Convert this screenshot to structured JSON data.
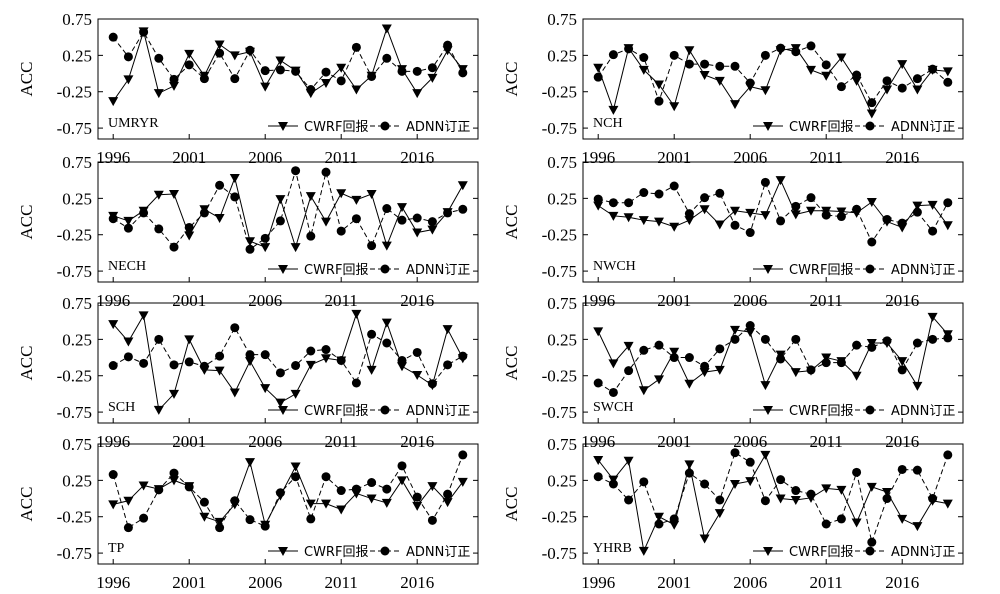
{
  "figure": {
    "ylabel": "ACC",
    "legend": {
      "series1": "CWRF回报",
      "series2": "ADNN订正",
      "placement": "bottom-right"
    },
    "colors": {
      "line": "#000000",
      "marker": "#000000",
      "background": "#ffffff"
    }
  },
  "chart_data": [
    {
      "type": "line",
      "region": "UMRYR",
      "xlim": [
        1995,
        2020
      ],
      "ylim": [
        -0.9,
        0.75
      ],
      "x": [
        1996,
        1997,
        1998,
        1999,
        2000,
        2001,
        2002,
        2003,
        2004,
        2005,
        2006,
        2007,
        2008,
        2009,
        2010,
        2011,
        2012,
        2013,
        2014,
        2015,
        2016,
        2017,
        2018,
        2019
      ],
      "xticks": [
        1996,
        2001,
        2006,
        2011,
        2016
      ],
      "yticks": [
        0.75,
        0.25,
        -0.25,
        -0.75
      ],
      "series": [
        {
          "name": "CWRF回报",
          "values": [
            -0.38,
            -0.08,
            0.58,
            -0.27,
            -0.17,
            0.27,
            -0.03,
            0.4,
            0.25,
            0.3,
            -0.18,
            0.18,
            0.04,
            -0.27,
            -0.13,
            0.08,
            -0.22,
            -0.03,
            0.62,
            0.06,
            -0.27,
            -0.06,
            0.32,
            0.06
          ]
        },
        {
          "name": "ADNN订正",
          "values": [
            0.5,
            0.23,
            0.57,
            0.21,
            -0.08,
            0.12,
            -0.07,
            0.28,
            -0.07,
            0.32,
            0.04,
            0.05,
            0.03,
            -0.22,
            0.02,
            -0.1,
            0.36,
            -0.04,
            0.21,
            0.03,
            0.03,
            0.08,
            0.39,
            0.01
          ]
        }
      ]
    },
    {
      "type": "line",
      "region": "NCH",
      "xlim": [
        1995,
        2020
      ],
      "ylim": [
        -0.9,
        0.75
      ],
      "x": [
        1996,
        1997,
        1998,
        1999,
        2000,
        2001,
        2002,
        2003,
        2004,
        2005,
        2006,
        2007,
        2008,
        2009,
        2010,
        2011,
        2012,
        2013,
        2014,
        2015,
        2016,
        2017,
        2018,
        2019
      ],
      "xticks": [
        1996,
        2001,
        2006,
        2011,
        2016
      ],
      "yticks": [
        0.75,
        0.25,
        -0.25,
        -0.75
      ],
      "series": [
        {
          "name": "CWRF回报",
          "values": [
            0.08,
            -0.5,
            0.35,
            0.05,
            -0.15,
            -0.45,
            0.32,
            -0.02,
            -0.1,
            -0.42,
            -0.18,
            -0.23,
            0.32,
            0.35,
            0.05,
            -0.03,
            0.22,
            -0.1,
            -0.55,
            -0.22,
            0.13,
            -0.22,
            0.05,
            0.03
          ]
        },
        {
          "name": "ADNN订正",
          "values": [
            -0.05,
            0.26,
            0.34,
            0.22,
            -0.38,
            0.25,
            0.13,
            0.13,
            0.1,
            0.1,
            -0.13,
            0.25,
            0.35,
            0.3,
            0.38,
            0.12,
            -0.18,
            -0.02,
            -0.4,
            -0.1,
            -0.2,
            -0.07,
            0.06,
            -0.12
          ]
        }
      ]
    },
    {
      "type": "line",
      "region": "NECH",
      "xlim": [
        1995,
        2020
      ],
      "ylim": [
        -0.9,
        0.75
      ],
      "x": [
        1996,
        1997,
        1998,
        1999,
        2000,
        2001,
        2002,
        2003,
        2004,
        2005,
        2006,
        2007,
        2008,
        2009,
        2010,
        2011,
        2012,
        2013,
        2014,
        2015,
        2016,
        2017,
        2018,
        2019
      ],
      "xticks": [
        1996,
        2001,
        2006,
        2011,
        2016
      ],
      "yticks": [
        0.75,
        0.25,
        -0.25,
        -0.75
      ],
      "series": [
        {
          "name": "CWRF回报",
          "values": [
            0.01,
            -0.06,
            0.08,
            0.3,
            0.31,
            -0.26,
            0.1,
            -0.02,
            0.53,
            -0.34,
            -0.42,
            0.24,
            -0.42,
            0.28,
            -0.07,
            0.32,
            0.23,
            0.31,
            -0.4,
            0.13,
            -0.22,
            -0.18,
            0.06,
            0.43
          ]
        },
        {
          "name": "ADNN订正",
          "values": [
            -0.03,
            -0.16,
            0.05,
            -0.17,
            -0.42,
            -0.15,
            0.05,
            0.43,
            0.27,
            -0.45,
            -0.3,
            -0.06,
            0.63,
            -0.27,
            0.61,
            -0.2,
            -0.03,
            -0.4,
            0.11,
            -0.05,
            -0.02,
            -0.07,
            0.05,
            0.1
          ]
        }
      ]
    },
    {
      "type": "line",
      "region": "NWCH",
      "xlim": [
        1995,
        2020
      ],
      "ylim": [
        -0.9,
        0.75
      ],
      "x": [
        1996,
        1997,
        1998,
        1999,
        2000,
        2001,
        2002,
        2003,
        2004,
        2005,
        2006,
        2007,
        2008,
        2009,
        2010,
        2011,
        2012,
        2013,
        2014,
        2015,
        2016,
        2017,
        2018,
        2019
      ],
      "xticks": [
        1996,
        2001,
        2006,
        2011,
        2016
      ],
      "yticks": [
        0.75,
        0.25,
        -0.25,
        -0.75
      ],
      "series": [
        {
          "name": "CWRF回报",
          "values": [
            0.15,
            0.01,
            -0.01,
            -0.05,
            -0.07,
            -0.14,
            -0.05,
            0.1,
            -0.11,
            0.08,
            0.05,
            0.02,
            0.5,
            0.03,
            0.08,
            0.08,
            0.07,
            0.05,
            0.2,
            -0.07,
            -0.15,
            0.15,
            0.16,
            -0.12
          ]
        },
        {
          "name": "ADNN订正",
          "values": [
            0.24,
            0.19,
            0.19,
            0.33,
            0.31,
            0.42,
            0.04,
            0.26,
            0.32,
            -0.12,
            -0.22,
            0.47,
            -0.06,
            0.14,
            0.26,
            0.02,
            0.0,
            0.1,
            -0.35,
            -0.04,
            -0.09,
            0.06,
            -0.2,
            0.19
          ]
        }
      ]
    },
    {
      "type": "line",
      "region": "SCH",
      "xlim": [
        1995,
        2020
      ],
      "ylim": [
        -0.9,
        0.75
      ],
      "x": [
        1996,
        1997,
        1998,
        1999,
        2000,
        2001,
        2002,
        2003,
        2004,
        2005,
        2006,
        2007,
        2008,
        2009,
        2010,
        2011,
        2012,
        2013,
        2014,
        2015,
        2016,
        2017,
        2018,
        2019
      ],
      "xticks": [
        1996,
        2001,
        2006,
        2011,
        2016
      ],
      "yticks": [
        0.75,
        0.25,
        -0.25,
        -0.75
      ],
      "series": [
        {
          "name": "CWRF回报",
          "values": [
            0.46,
            0.22,
            0.58,
            -0.72,
            -0.5,
            0.25,
            -0.17,
            -0.18,
            -0.48,
            -0.05,
            -0.42,
            -0.62,
            -0.5,
            -0.1,
            -0.01,
            -0.04,
            0.6,
            -0.17,
            0.48,
            -0.12,
            -0.24,
            -0.38,
            0.39,
            -0.01
          ]
        },
        {
          "name": "ADNN订正",
          "values": [
            -0.11,
            0.01,
            -0.08,
            0.25,
            -0.1,
            -0.06,
            -0.12,
            0.02,
            0.41,
            0.04,
            0.04,
            -0.21,
            -0.11,
            0.09,
            0.11,
            -0.04,
            -0.35,
            0.32,
            0.2,
            -0.04,
            0.07,
            -0.36,
            -0.1,
            0.02
          ]
        }
      ]
    },
    {
      "type": "line",
      "region": "SWCH",
      "xlim": [
        1995,
        2020
      ],
      "ylim": [
        -0.9,
        0.75
      ],
      "x": [
        1996,
        1997,
        1998,
        1999,
        2000,
        2001,
        2002,
        2003,
        2004,
        2005,
        2006,
        2007,
        2008,
        2009,
        2010,
        2011,
        2012,
        2013,
        2014,
        2015,
        2016,
        2017,
        2018,
        2019
      ],
      "xticks": [
        1996,
        2001,
        2006,
        2011,
        2016
      ],
      "yticks": [
        0.75,
        0.25,
        -0.25,
        -0.75
      ],
      "series": [
        {
          "name": "CWRF回报",
          "values": [
            0.36,
            -0.08,
            0.16,
            -0.45,
            -0.3,
            0.08,
            -0.36,
            -0.2,
            -0.17,
            0.38,
            0.35,
            -0.38,
            0.04,
            -0.2,
            -0.18,
            0.0,
            -0.05,
            -0.25,
            0.2,
            0.2,
            -0.05,
            -0.39,
            0.56,
            0.32
          ]
        },
        {
          "name": "ADNN订正",
          "values": [
            -0.35,
            -0.48,
            -0.18,
            0.1,
            0.17,
            0.0,
            0.0,
            -0.12,
            0.12,
            0.25,
            0.44,
            0.25,
            -0.02,
            0.25,
            -0.17,
            -0.07,
            -0.07,
            0.17,
            0.14,
            0.23,
            -0.17,
            0.2,
            0.25,
            0.27
          ]
        }
      ]
    },
    {
      "type": "line",
      "region": "TP",
      "xlim": [
        1995,
        2020
      ],
      "ylim": [
        -0.9,
        0.75
      ],
      "x": [
        1996,
        1997,
        1998,
        1999,
        2000,
        2001,
        2002,
        2003,
        2004,
        2005,
        2006,
        2007,
        2008,
        2009,
        2010,
        2011,
        2012,
        2013,
        2014,
        2015,
        2016,
        2017,
        2018,
        2019
      ],
      "xticks": [
        1996,
        2001,
        2006,
        2011,
        2016
      ],
      "yticks": [
        0.75,
        0.25,
        -0.25,
        -0.75
      ],
      "series": [
        {
          "name": "CWRF回报",
          "values": [
            -0.08,
            -0.03,
            0.18,
            0.13,
            0.25,
            0.17,
            -0.25,
            -0.32,
            -0.08,
            0.5,
            -0.36,
            0.04,
            0.44,
            -0.07,
            -0.07,
            -0.15,
            0.07,
            0.0,
            -0.06,
            0.25,
            -0.1,
            0.17,
            -0.05,
            0.23
          ]
        },
        {
          "name": "ADNN订正",
          "values": [
            0.33,
            -0.4,
            -0.27,
            0.12,
            0.35,
            0.16,
            -0.05,
            -0.4,
            -0.03,
            -0.29,
            -0.38,
            0.08,
            0.3,
            -0.28,
            0.3,
            0.11,
            0.13,
            0.22,
            0.13,
            0.45,
            0.02,
            -0.3,
            0.06,
            0.6
          ]
        }
      ]
    },
    {
      "type": "line",
      "region": "YHRB",
      "xlim": [
        1995,
        2020
      ],
      "ylim": [
        -0.9,
        0.75
      ],
      "x": [
        1996,
        1997,
        1998,
        1999,
        2000,
        2001,
        2002,
        2003,
        2004,
        2005,
        2006,
        2007,
        2008,
        2009,
        2010,
        2011,
        2012,
        2013,
        2014,
        2015,
        2016,
        2017,
        2018,
        2019
      ],
      "xticks": [
        1996,
        2001,
        2006,
        2011,
        2016
      ],
      "yticks": [
        0.75,
        0.25,
        -0.25,
        -0.75
      ],
      "series": [
        {
          "name": "CWRF回报",
          "values": [
            0.53,
            0.26,
            0.52,
            -0.72,
            -0.25,
            -0.36,
            0.47,
            -0.55,
            -0.2,
            0.2,
            0.24,
            0.6,
            0.0,
            -0.02,
            0.01,
            0.14,
            0.12,
            -0.33,
            0.16,
            0.09,
            -0.28,
            -0.38,
            -0.03,
            -0.07
          ]
        },
        {
          "name": "ADNN订正",
          "values": [
            0.3,
            0.2,
            -0.02,
            0.23,
            -0.35,
            -0.28,
            0.35,
            0.2,
            -0.02,
            0.63,
            0.5,
            -0.03,
            0.26,
            0.11,
            0.06,
            -0.35,
            -0.28,
            0.36,
            -0.6,
            0.0,
            0.4,
            0.39,
            0.0,
            0.6
          ]
        }
      ]
    }
  ]
}
